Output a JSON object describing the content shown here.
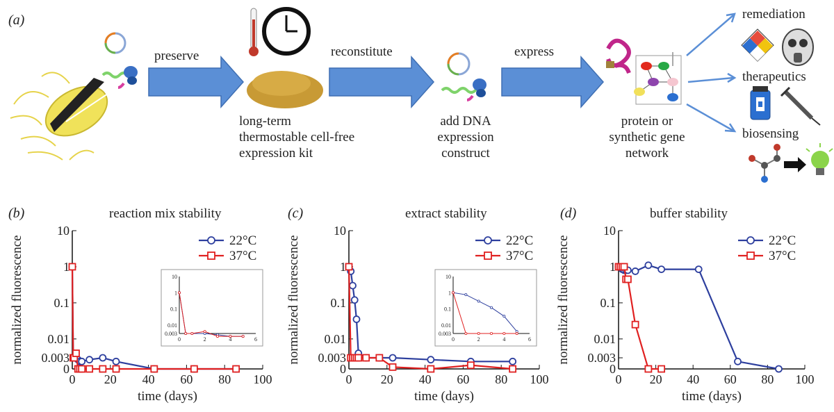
{
  "panel_a": {
    "letter": "(a)",
    "steps": {
      "preserve": "preserve",
      "reconstitute": "reconstitute",
      "express": "express"
    },
    "kit_lines": [
      "long-term",
      "thermostable cell-free",
      "expression kit"
    ],
    "dna_lines": [
      "add DNA",
      "expression",
      "construct"
    ],
    "network_lines": [
      "protein or",
      "synthetic gene",
      "network"
    ],
    "applications": [
      "remediation",
      "therapeutics",
      "biosensing"
    ]
  },
  "chart_data": [
    {
      "panel": "(b)",
      "type": "line",
      "title": "reaction mix stability",
      "xlabel": "time (days)",
      "ylabel": "normalized fluorescence",
      "xlim": [
        0,
        100
      ],
      "xticks": [
        "0",
        "20",
        "40",
        "60",
        "80",
        "100"
      ],
      "yticks": [
        "0",
        "0.003",
        "0.01",
        "0.1",
        "1",
        "10"
      ],
      "legend": [
        "22°C",
        "37°C"
      ],
      "series": [
        {
          "name": "22°C",
          "color": "#2d3f9e",
          "marker": "circle",
          "x": [
            0,
            0.5,
            1,
            2,
            3,
            4,
            5,
            9,
            16,
            23,
            43,
            64,
            86
          ],
          "y": [
            1,
            0.003,
            0.003,
            0.003,
            0.0025,
            0.002,
            0.002,
            0.0025,
            0.003,
            0.002,
            0,
            0,
            0
          ]
        },
        {
          "name": "37°C",
          "color": "#e02020",
          "marker": "square",
          "x": [
            0,
            0.5,
            1,
            2,
            3,
            4,
            5,
            9,
            16,
            23,
            43,
            64,
            86
          ],
          "y": [
            1,
            0.003,
            0.003,
            0.004,
            0,
            0,
            0,
            0,
            0,
            0,
            0,
            0,
            0
          ]
        }
      ],
      "inset": {
        "xticks": [
          "0",
          "2",
          "4",
          "6"
        ],
        "yticks": [
          "0.003",
          "0.01",
          "0.1",
          "1",
          "10"
        ]
      }
    },
    {
      "panel": "(c)",
      "type": "line",
      "title": "extract stability",
      "xlabel": "time (days)",
      "ylabel": "normalized fluorescence",
      "xlim": [
        0,
        100
      ],
      "xticks": [
        "0",
        "20",
        "40",
        "60",
        "80",
        "100"
      ],
      "yticks": [
        "0",
        "0.003",
        "0.01",
        "0.1",
        "1",
        "10"
      ],
      "legend": [
        "22°C",
        "37°C"
      ],
      "series": [
        {
          "name": "22°C",
          "color": "#2d3f9e",
          "marker": "circle",
          "x": [
            0,
            1,
            2,
            3,
            4,
            5,
            9,
            16,
            23,
            43,
            64,
            86
          ],
          "y": [
            1,
            0.75,
            0.3,
            0.12,
            0.035,
            0.004,
            0.003,
            0.003,
            0.003,
            0.0025,
            0.002,
            0.002
          ]
        },
        {
          "name": "37°C",
          "color": "#e02020",
          "marker": "square",
          "x": [
            0,
            1,
            2,
            3,
            4,
            5,
            9,
            16,
            23,
            43,
            64,
            86
          ],
          "y": [
            1,
            0.003,
            0.003,
            0.003,
            0.003,
            0.003,
            0.003,
            0.003,
            0.0005,
            0,
            0.001,
            0
          ]
        }
      ],
      "inset": {
        "xticks": [
          "0",
          "2",
          "4",
          "6"
        ],
        "yticks": [
          "0.003",
          "0.01",
          "0.1",
          "1",
          "10"
        ]
      }
    },
    {
      "panel": "(d)",
      "type": "line",
      "title": "buffer stability",
      "xlabel": "time (days)",
      "ylabel": "normalized fluorescence",
      "xlim": [
        0,
        100
      ],
      "xticks": [
        "0",
        "20",
        "40",
        "60",
        "80",
        "100"
      ],
      "yticks": [
        "0",
        "0.003",
        "0.01",
        "0.1",
        "1",
        "10"
      ],
      "legend": [
        "22°C",
        "37°C"
      ],
      "series": [
        {
          "name": "22°C",
          "color": "#2d3f9e",
          "marker": "circle",
          "x": [
            0,
            1,
            2,
            3,
            4,
            5,
            9,
            16,
            23,
            43,
            64,
            86
          ],
          "y": [
            1,
            1,
            0.85,
            0.8,
            0.8,
            0.8,
            0.75,
            1.1,
            0.85,
            0.85,
            0.002,
            0
          ]
        },
        {
          "name": "37°C",
          "color": "#e02020",
          "marker": "square",
          "x": [
            0,
            1,
            2,
            3,
            4,
            5,
            9,
            16,
            23
          ],
          "y": [
            1,
            1,
            1,
            1,
            0.45,
            0.45,
            0.025,
            0,
            0
          ]
        }
      ]
    }
  ]
}
